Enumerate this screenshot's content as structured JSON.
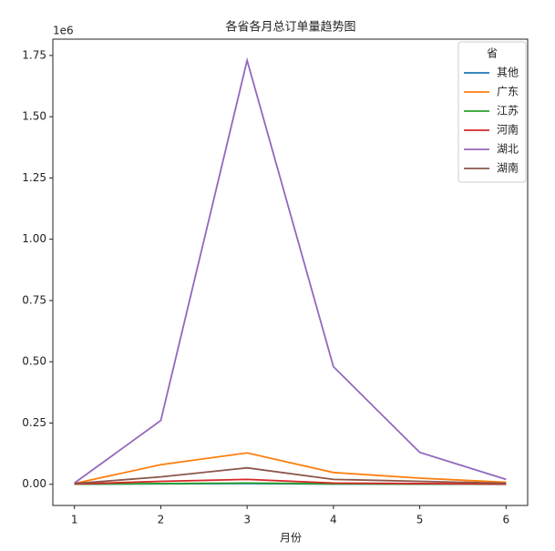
{
  "chart_data": {
    "type": "line",
    "title": "各省各月总订单量趋势图",
    "x_label": "月份",
    "y_offset_label": "1e6",
    "legend_title": "省",
    "legend": "upper right",
    "x": [
      1,
      2,
      3,
      4,
      5,
      6
    ],
    "xlim": [
      0.75,
      6.25
    ],
    "xticks": [
      1,
      2,
      3,
      4,
      5,
      6
    ],
    "ylim": [
      -86500,
      1816500
    ],
    "yticks": [
      {
        "value": 0,
        "label": "0.00"
      },
      {
        "value": 250000,
        "label": "0.25"
      },
      {
        "value": 500000,
        "label": "0.50"
      },
      {
        "value": 750000,
        "label": "0.75"
      },
      {
        "value": 1000000,
        "label": "1.00"
      },
      {
        "value": 1250000,
        "label": "1.25"
      },
      {
        "value": 1500000,
        "label": "1.50"
      },
      {
        "value": 1750000,
        "label": "1.75"
      }
    ],
    "series": [
      {
        "name": "其他",
        "color": "#1f77b4",
        "values": [
          300,
          2000,
          3000,
          1000,
          500,
          200
        ]
      },
      {
        "name": "广东",
        "color": "#ff7f0e",
        "values": [
          3000,
          80000,
          128000,
          48000,
          25000,
          8000
        ]
      },
      {
        "name": "江苏",
        "color": "#2ca02c",
        "values": [
          500,
          3000,
          5000,
          2000,
          1000,
          500
        ]
      },
      {
        "name": "河南",
        "color": "#d62728",
        "values": [
          1000,
          12000,
          20000,
          5000,
          3000,
          1000
        ]
      },
      {
        "name": "湖北",
        "color": "#9467bd",
        "values": [
          5000,
          260000,
          1730000,
          480000,
          130000,
          20000
        ]
      },
      {
        "name": "湖南",
        "color": "#8c564b",
        "values": [
          3000,
          30000,
          67000,
          20000,
          12000,
          4000
        ]
      }
    ]
  }
}
